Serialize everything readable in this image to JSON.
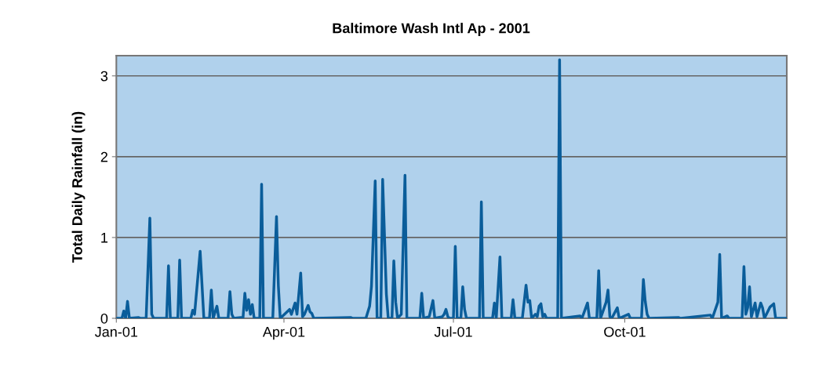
{
  "chart_data": {
    "type": "line",
    "title": "Baltimore Wash Intl Ap - 2001",
    "ylabel": "Total Daily Rainfall (in)",
    "x": [
      "2001-01-01",
      "2001-01-04",
      "2001-01-05",
      "2001-01-06",
      "2001-01-07",
      "2001-01-08",
      "2001-01-13",
      "2001-01-14",
      "2001-01-17",
      "2001-01-19",
      "2001-01-20",
      "2001-01-21",
      "2001-01-28",
      "2001-01-29",
      "2001-01-30",
      "2001-02-03",
      "2001-02-04",
      "2001-02-05",
      "2001-02-10",
      "2001-02-11",
      "2001-02-12",
      "2001-02-15",
      "2001-02-17",
      "2001-02-20",
      "2001-02-21",
      "2001-02-22",
      "2001-02-24",
      "2001-02-25",
      "2001-03-02",
      "2001-03-03",
      "2001-03-04",
      "2001-03-05",
      "2001-03-09",
      "2001-03-10",
      "2001-03-11",
      "2001-03-12",
      "2001-03-13",
      "2001-03-14",
      "2001-03-15",
      "2001-03-16",
      "2001-03-19",
      "2001-03-20",
      "2001-03-21",
      "2001-03-26",
      "2001-03-28",
      "2001-03-29",
      "2001-03-30",
      "2001-04-04",
      "2001-04-05",
      "2001-04-07",
      "2001-04-08",
      "2001-04-10",
      "2001-04-11",
      "2001-04-12",
      "2001-04-14",
      "2001-04-15",
      "2001-04-16",
      "2001-04-17",
      "2001-05-07",
      "2001-05-08",
      "2001-05-15",
      "2001-05-17",
      "2001-05-18",
      "2001-05-20",
      "2001-05-21",
      "2001-05-23",
      "2001-05-24",
      "2001-05-26",
      "2001-05-27",
      "2001-05-29",
      "2001-05-30",
      "2001-05-31",
      "2001-06-01",
      "2001-06-03",
      "2001-06-05",
      "2001-06-06",
      "2001-06-13",
      "2001-06-14",
      "2001-06-15",
      "2001-06-18",
      "2001-06-20",
      "2001-06-21",
      "2001-06-25",
      "2001-06-26",
      "2001-06-27",
      "2001-06-28",
      "2001-06-29",
      "2001-07-01",
      "2001-07-02",
      "2001-07-03",
      "2001-07-05",
      "2001-07-06",
      "2001-07-07",
      "2001-07-08",
      "2001-07-15",
      "2001-07-16",
      "2001-07-17",
      "2001-07-22",
      "2001-07-23",
      "2001-07-24",
      "2001-07-26",
      "2001-07-27",
      "2001-08-01",
      "2001-08-02",
      "2001-08-03",
      "2001-08-07",
      "2001-08-09",
      "2001-08-10",
      "2001-08-11",
      "2001-08-12",
      "2001-08-14",
      "2001-08-15",
      "2001-08-16",
      "2001-08-17",
      "2001-08-18",
      "2001-08-19",
      "2001-08-20",
      "2001-08-26",
      "2001-08-27",
      "2001-08-28",
      "2001-09-07",
      "2001-09-08",
      "2001-09-11",
      "2001-09-12",
      "2001-09-16",
      "2001-09-17",
      "2001-09-18",
      "2001-09-21",
      "2001-09-22",
      "2001-09-23",
      "2001-09-24",
      "2001-09-27",
      "2001-09-28",
      "2001-10-03",
      "2001-10-04",
      "2001-10-10",
      "2001-10-11",
      "2001-10-12",
      "2001-10-13",
      "2001-10-14",
      "2001-10-30",
      "2001-10-31",
      "2001-11-16",
      "2001-11-17",
      "2001-11-20",
      "2001-11-21",
      "2001-11-22",
      "2001-11-25",
      "2001-11-26",
      "2001-12-03",
      "2001-12-04",
      "2001-12-05",
      "2001-12-06",
      "2001-12-07",
      "2001-12-08",
      "2001-12-10",
      "2001-12-11",
      "2001-12-13",
      "2001-12-14",
      "2001-12-15",
      "2001-12-18",
      "2001-12-20",
      "2001-12-21",
      "2001-12-27"
    ],
    "series": [
      {
        "color": "#0a5d9a",
        "values": [
          0,
          0,
          0.09,
          0,
          0.21,
          0,
          0.01,
          0,
          0,
          1.24,
          0.05,
          0,
          0,
          0.65,
          0,
          0,
          0.72,
          0,
          0,
          0.1,
          0.05,
          0.83,
          0,
          0,
          0.35,
          0,
          0.15,
          0,
          0,
          0.33,
          0.05,
          0,
          0.01,
          0,
          0.31,
          0.1,
          0.23,
          0.05,
          0.17,
          0,
          0,
          1.66,
          0,
          0,
          1.26,
          0.4,
          0,
          0.11,
          0.05,
          0.19,
          0.05,
          0.56,
          0.02,
          0.05,
          0.16,
          0.08,
          0.06,
          0,
          0.01,
          0,
          0,
          0.15,
          0.4,
          1.7,
          0,
          0,
          1.72,
          0.3,
          0,
          0,
          0.71,
          0.2,
          0,
          0.05,
          1.77,
          0,
          0,
          0.31,
          0,
          0.02,
          0.22,
          0,
          0.02,
          0.05,
          0.11,
          0.02,
          0,
          0,
          0.89,
          0,
          0,
          0.39,
          0.11,
          0,
          0,
          1.44,
          0,
          0,
          0.19,
          0,
          0.76,
          0,
          0,
          0.23,
          0,
          0,
          0.41,
          0.2,
          0.22,
          0,
          0.05,
          0.02,
          0.15,
          0.18,
          0.02,
          0.05,
          0,
          0,
          3.2,
          0,
          0.03,
          0,
          0.19,
          0,
          0,
          0.59,
          0,
          0.2,
          0.35,
          0.02,
          0,
          0.13,
          0,
          0.05,
          0,
          0,
          0.48,
          0.21,
          0.05,
          0,
          0.01,
          0,
          0.04,
          0,
          0.2,
          0.79,
          0,
          0.03,
          0,
          0,
          0.64,
          0.05,
          0.13,
          0.39,
          0.02,
          0.19,
          0.02,
          0.19,
          0.13,
          0,
          0.14,
          0.18,
          0,
          0
        ]
      }
    ],
    "xlim": [
      "2001-01-01",
      "2001-12-27"
    ],
    "xticks": [
      {
        "value": "2001-01-01",
        "label": "Jan-01"
      },
      {
        "value": "2001-04-01",
        "label": "Apr-01"
      },
      {
        "value": "2001-07-01",
        "label": "Jul-01"
      },
      {
        "value": "2001-10-01",
        "label": "Oct-01"
      }
    ],
    "ylim": [
      0,
      3.25
    ],
    "yticks": [
      0,
      1,
      2,
      3
    ],
    "grid": "y",
    "marker": "none",
    "line_style": "solid"
  }
}
